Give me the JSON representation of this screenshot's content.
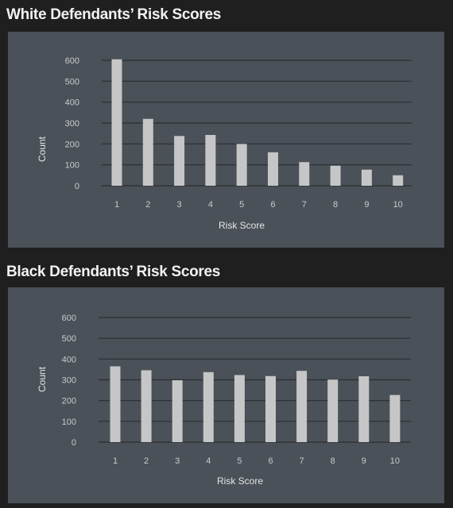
{
  "chart_data": [
    {
      "type": "bar",
      "title": "White Defendants’ Risk Scores",
      "xlabel": "Risk Score",
      "ylabel": "Count",
      "categories": [
        "1",
        "2",
        "3",
        "4",
        "5",
        "6",
        "7",
        "8",
        "9",
        "10"
      ],
      "values": [
        605,
        320,
        238,
        243,
        200,
        160,
        113,
        96,
        77,
        50
      ],
      "yticks": [
        0,
        100,
        200,
        300,
        400,
        500,
        600
      ],
      "ylim": [
        0,
        600
      ],
      "grid": true,
      "colors": {
        "bar": "#c6c6c6",
        "grid": "#2b2f33",
        "panel": "#4a5158",
        "background": "#1f1f1f"
      }
    },
    {
      "type": "bar",
      "title": "Black Defendants’ Risk Scores",
      "xlabel": "Risk Score",
      "ylabel": "Count",
      "categories": [
        "1",
        "2",
        "3",
        "4",
        "5",
        "6",
        "7",
        "8",
        "9",
        "10"
      ],
      "values": [
        365,
        346,
        298,
        337,
        323,
        318,
        343,
        301,
        317,
        227
      ],
      "yticks": [
        0,
        100,
        200,
        300,
        400,
        500,
        600
      ],
      "ylim": [
        0,
        600
      ],
      "grid": true,
      "colors": {
        "bar": "#c6c6c6",
        "grid": "#2b2f33",
        "panel": "#4a5158",
        "background": "#1f1f1f"
      }
    }
  ]
}
